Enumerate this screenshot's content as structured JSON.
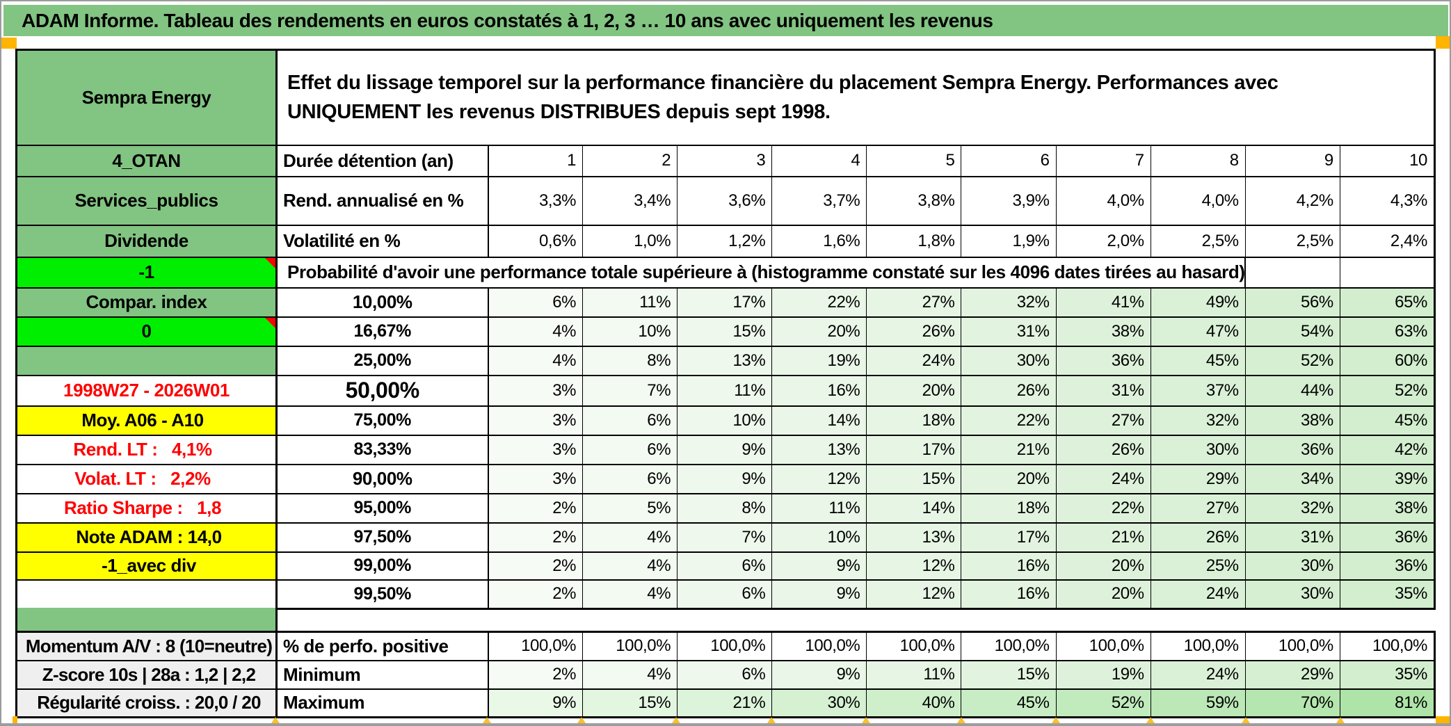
{
  "title": "ADAM Informe. Tableau des rendements en euros constatés à 1, 2, 3 … 10 ans avec uniquement les revenus",
  "colors": {
    "green": "#82C482",
    "bright": "#00EF00",
    "orange": "#FFB400",
    "yellow": "#FFFF00",
    "green50": "#A9D08E",
    "lightrow": "#CBE5C0",
    "gray": "#EFEFEF",
    "red": "#FF0000",
    "grad_start": "#F6FBF5",
    "grad_end": "#D2EECE",
    "grad_strong_start": "#E9F8E7",
    "grad_strong_end": "#AEE4A8"
  },
  "sheet": {
    "rows": [
      {
        "name": "header",
        "kind": "header",
        "a": "Sempra Energy",
        "a_style": "header",
        "b": "Effet du lissage temporel sur la performance financière du placement Sempra Energy. Performances avec UNIQUEMENT les revenus DISTRIBUES depuis sept 1998.",
        "b_style": "desc"
      },
      {
        "name": "duree",
        "a": "4_OTAN",
        "a_style": "green",
        "b": "Durée détention (an)",
        "b_style": "label",
        "values": [
          "1",
          "2",
          "3",
          "4",
          "5",
          "6",
          "7",
          "8",
          "9",
          "10"
        ],
        "v_style": "cols"
      },
      {
        "name": "rend_annualise",
        "a": "Services_publics",
        "a_style": "green",
        "b": "Rend. annualisé en %",
        "b_style": "label",
        "values": [
          "3,3%",
          "3,4%",
          "3,6%",
          "3,7%",
          "3,8%",
          "3,9%",
          "4,0%",
          "4,0%",
          "4,2%",
          "4,3%"
        ],
        "v_style": "uniform"
      },
      {
        "name": "volatilite",
        "a": "Dividende",
        "a_style": "green",
        "b": "Volatilité en %",
        "b_style": "label",
        "values": [
          "0,6%",
          "1,0%",
          "1,2%",
          "1,6%",
          "1,8%",
          "1,9%",
          "2,0%",
          "2,5%",
          "2,5%",
          "2,4%"
        ],
        "v_style": "orange"
      },
      {
        "name": "probabilite",
        "kind": "span",
        "a": "-1",
        "a_style": "bright",
        "marker": true,
        "b": "Probabilité d'avoir une performance totale supérieure à (histogramme constaté sur les 4096 dates tirées au hasard)",
        "b_style": "desc-row",
        "empty_cells": 2
      },
      {
        "name": "p10",
        "a": "Compar. index",
        "a_style": "green",
        "b": "10,00%",
        "b_style": "orange",
        "values": [
          "6%",
          "11%",
          "17%",
          "22%",
          "27%",
          "32%",
          "41%",
          "49%",
          "56%",
          "65%"
        ],
        "v_style": "grad-bold"
      },
      {
        "name": "p16_67",
        "a": "0",
        "a_style": "bright",
        "marker": true,
        "b": "16,67%",
        "b_style": "pct",
        "values": [
          "4%",
          "10%",
          "15%",
          "20%",
          "26%",
          "31%",
          "38%",
          "47%",
          "54%",
          "63%"
        ],
        "v_style": "grad"
      },
      {
        "name": "p25",
        "a": "",
        "a_style": "green",
        "b": "25,00%",
        "b_style": "pct",
        "values": [
          "4%",
          "8%",
          "13%",
          "19%",
          "24%",
          "30%",
          "36%",
          "45%",
          "52%",
          "60%"
        ],
        "v_style": "grad"
      },
      {
        "name": "p50",
        "a": "1998W27 - 2026W01",
        "a_style": "red-center",
        "b": "50,00%",
        "b_style": "green50",
        "values": [
          "3%",
          "7%",
          "11%",
          "16%",
          "20%",
          "26%",
          "31%",
          "37%",
          "44%",
          "52%"
        ],
        "v_style": "grad-big"
      },
      {
        "name": "p75",
        "a": "Moy. A06 - A10",
        "a_style": "yellow-right",
        "b": "75,00%",
        "b_style": "pct",
        "values": [
          "3%",
          "6%",
          "10%",
          "14%",
          "18%",
          "22%",
          "27%",
          "32%",
          "38%",
          "45%"
        ],
        "v_style": "grad"
      },
      {
        "name": "p83_33",
        "a": "Rend. LT :   4,1%",
        "a_style": "red-right",
        "b": "83,33%",
        "b_style": "pct",
        "values": [
          "3%",
          "6%",
          "9%",
          "13%",
          "17%",
          "21%",
          "26%",
          "30%",
          "36%",
          "42%"
        ],
        "v_style": "grad"
      },
      {
        "name": "p90",
        "a": "Volat. LT :   2,2%",
        "a_style": "red-right",
        "b": "90,00%",
        "b_style": "orange",
        "values": [
          "3%",
          "6%",
          "9%",
          "12%",
          "15%",
          "20%",
          "24%",
          "29%",
          "34%",
          "39%"
        ],
        "v_style": "grad-bold"
      },
      {
        "name": "p95",
        "a": "Ratio Sharpe :   1,8",
        "a_style": "red-right",
        "b": "95,00%",
        "b_style": "pct",
        "values": [
          "2%",
          "5%",
          "8%",
          "11%",
          "14%",
          "18%",
          "22%",
          "27%",
          "32%",
          "38%"
        ],
        "v_style": "grad"
      },
      {
        "name": "p97_50",
        "a": "Note ADAM : 14,0",
        "a_style": "yellow-left",
        "b": "97,50%",
        "b_style": "pct",
        "values": [
          "2%",
          "4%",
          "7%",
          "10%",
          "13%",
          "17%",
          "21%",
          "26%",
          "31%",
          "36%"
        ],
        "v_style": "grad"
      },
      {
        "name": "p99",
        "a": "-1_avec div",
        "a_style": "yellow-left",
        "b": "99,00%",
        "b_style": "pct",
        "values": [
          "2%",
          "4%",
          "6%",
          "9%",
          "12%",
          "16%",
          "20%",
          "25%",
          "30%",
          "36%"
        ],
        "v_style": "grad"
      },
      {
        "name": "p99_50",
        "a": "",
        "a_style": "white",
        "b": "99,50%",
        "b_style": "pct",
        "values": [
          "2%",
          "4%",
          "6%",
          "9%",
          "12%",
          "16%",
          "20%",
          "24%",
          "30%",
          "35%"
        ],
        "v_style": "grad"
      }
    ],
    "summary_rows": [
      {
        "name": "perfo_positive",
        "a": "Momentum A/V : 8 (10=neutre)",
        "a_style": "gray",
        "b": "% de perfo. positive",
        "b_style": "label",
        "values": [
          "100,0%",
          "100,0%",
          "100,0%",
          "100,0%",
          "100,0%",
          "100,0%",
          "100,0%",
          "100,0%",
          "100,0%",
          "100,0%"
        ],
        "v_style": "bright"
      },
      {
        "name": "minimum",
        "a": "Z-score 10s | 28a : 1,2 | 2,2",
        "a_style": "gray",
        "b": "Minimum",
        "b_style": "label",
        "values": [
          "2%",
          "4%",
          "6%",
          "9%",
          "11%",
          "15%",
          "19%",
          "24%",
          "29%",
          "35%"
        ],
        "v_style": "grad-bold"
      },
      {
        "name": "maximum",
        "a": "Régularité croiss. : 20,0 / 20",
        "a_style": "gray",
        "b": "Maximum",
        "b_style": "label",
        "values": [
          "9%",
          "15%",
          "21%",
          "30%",
          "40%",
          "45%",
          "52%",
          "59%",
          "70%",
          "81%"
        ],
        "v_style": "grad-strong"
      }
    ]
  }
}
